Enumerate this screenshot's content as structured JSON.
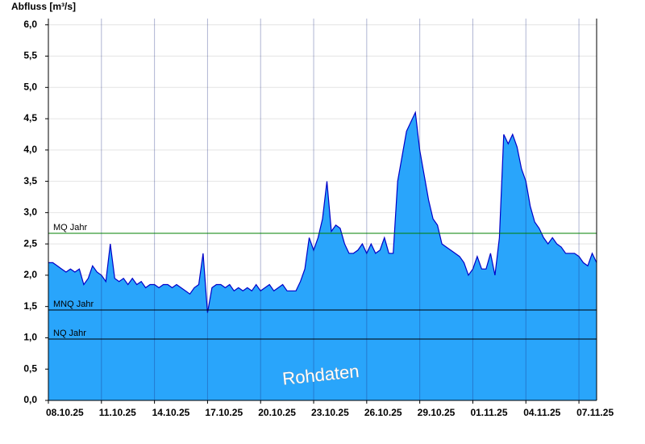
{
  "chart_data": {
    "type": "area",
    "title": "Abfluss [m³/s]",
    "annotation": "Rohdaten",
    "x": [
      "2025-10-08T00:00",
      "2025-10-08T06:00",
      "2025-10-08T12:00",
      "2025-10-08T18:00",
      "2025-10-09T00:00",
      "2025-10-09T06:00",
      "2025-10-09T12:00",
      "2025-10-09T18:00",
      "2025-10-10T00:00",
      "2025-10-10T06:00",
      "2025-10-10T12:00",
      "2025-10-10T18:00",
      "2025-10-11T00:00",
      "2025-10-11T06:00",
      "2025-10-11T12:00",
      "2025-10-11T18:00",
      "2025-10-12T00:00",
      "2025-10-12T06:00",
      "2025-10-12T12:00",
      "2025-10-12T18:00",
      "2025-10-13T00:00",
      "2025-10-13T06:00",
      "2025-10-13T12:00",
      "2025-10-13T18:00",
      "2025-10-14T00:00",
      "2025-10-14T06:00",
      "2025-10-14T12:00",
      "2025-10-14T18:00",
      "2025-10-15T00:00",
      "2025-10-15T06:00",
      "2025-10-15T12:00",
      "2025-10-15T18:00",
      "2025-10-16T00:00",
      "2025-10-16T06:00",
      "2025-10-16T12:00",
      "2025-10-16T18:00",
      "2025-10-17T00:00",
      "2025-10-17T06:00",
      "2025-10-17T12:00",
      "2025-10-17T18:00",
      "2025-10-18T00:00",
      "2025-10-18T06:00",
      "2025-10-18T12:00",
      "2025-10-18T18:00",
      "2025-10-19T00:00",
      "2025-10-19T06:00",
      "2025-10-19T12:00",
      "2025-10-19T18:00",
      "2025-10-20T00:00",
      "2025-10-20T06:00",
      "2025-10-20T12:00",
      "2025-10-20T18:00",
      "2025-10-21T00:00",
      "2025-10-21T06:00",
      "2025-10-21T12:00",
      "2025-10-21T18:00",
      "2025-10-22T00:00",
      "2025-10-22T06:00",
      "2025-10-22T12:00",
      "2025-10-22T18:00",
      "2025-10-23T00:00",
      "2025-10-23T06:00",
      "2025-10-23T12:00",
      "2025-10-23T18:00",
      "2025-10-24T00:00",
      "2025-10-24T06:00",
      "2025-10-24T12:00",
      "2025-10-24T18:00",
      "2025-10-25T00:00",
      "2025-10-25T06:00",
      "2025-10-25T12:00",
      "2025-10-25T18:00",
      "2025-10-26T00:00",
      "2025-10-26T06:00",
      "2025-10-26T12:00",
      "2025-10-26T18:00",
      "2025-10-27T00:00",
      "2025-10-27T06:00",
      "2025-10-27T12:00",
      "2025-10-27T18:00",
      "2025-10-28T00:00",
      "2025-10-28T06:00",
      "2025-10-28T12:00",
      "2025-10-28T18:00",
      "2025-10-29T00:00",
      "2025-10-29T06:00",
      "2025-10-29T12:00",
      "2025-10-29T18:00",
      "2025-10-30T00:00",
      "2025-10-30T06:00",
      "2025-10-30T12:00",
      "2025-10-30T18:00",
      "2025-10-31T00:00",
      "2025-10-31T06:00",
      "2025-10-31T12:00",
      "2025-10-31T18:00",
      "2025-11-01T00:00",
      "2025-11-01T06:00",
      "2025-11-01T12:00",
      "2025-11-01T18:00",
      "2025-11-02T00:00",
      "2025-11-02T06:00",
      "2025-11-02T12:00",
      "2025-11-02T18:00",
      "2025-11-03T00:00",
      "2025-11-03T06:00",
      "2025-11-03T12:00",
      "2025-11-03T18:00",
      "2025-11-04T00:00",
      "2025-11-04T06:00",
      "2025-11-04T12:00",
      "2025-11-04T18:00",
      "2025-11-05T00:00",
      "2025-11-05T06:00",
      "2025-11-05T12:00",
      "2025-11-05T18:00",
      "2025-11-06T00:00",
      "2025-11-06T06:00",
      "2025-11-06T12:00",
      "2025-11-06T18:00",
      "2025-11-07T00:00",
      "2025-11-07T06:00",
      "2025-11-07T12:00",
      "2025-11-07T18:00",
      "2025-11-08T00:00"
    ],
    "series": [
      {
        "name": "Abfluss",
        "color": "#29a5fb",
        "line_color": "#0000c8",
        "values": [
          2.2,
          2.2,
          2.15,
          2.1,
          2.05,
          2.1,
          2.05,
          2.1,
          1.85,
          1.95,
          2.15,
          2.05,
          2.0,
          1.9,
          2.5,
          1.95,
          1.9,
          1.95,
          1.85,
          1.95,
          1.85,
          1.9,
          1.8,
          1.85,
          1.85,
          1.8,
          1.85,
          1.85,
          1.8,
          1.85,
          1.8,
          1.75,
          1.7,
          1.8,
          1.85,
          2.35,
          1.4,
          1.8,
          1.85,
          1.85,
          1.8,
          1.85,
          1.75,
          1.8,
          1.75,
          1.8,
          1.75,
          1.85,
          1.75,
          1.8,
          1.85,
          1.75,
          1.8,
          1.85,
          1.75,
          1.75,
          1.75,
          1.9,
          2.1,
          2.6,
          2.4,
          2.6,
          2.9,
          3.5,
          2.7,
          2.8,
          2.75,
          2.5,
          2.35,
          2.35,
          2.4,
          2.5,
          2.35,
          2.5,
          2.35,
          2.4,
          2.6,
          2.35,
          2.35,
          3.5,
          3.9,
          4.3,
          4.45,
          4.6,
          4.0,
          3.6,
          3.2,
          2.9,
          2.8,
          2.5,
          2.45,
          2.4,
          2.35,
          2.3,
          2.2,
          2.0,
          2.1,
          2.3,
          2.1,
          2.1,
          2.35,
          2.0,
          2.6,
          4.25,
          4.1,
          4.25,
          4.05,
          3.7,
          3.5,
          3.1,
          2.85,
          2.75,
          2.6,
          2.5,
          2.6,
          2.5,
          2.45,
          2.35,
          2.35,
          2.35,
          2.3,
          2.2,
          2.15,
          2.35,
          2.2
        ]
      }
    ],
    "reference_lines": [
      {
        "label": "MQ Jahr",
        "value": 2.67,
        "color": "#008000"
      },
      {
        "label": "MNQ Jahr",
        "value": 1.445,
        "color": "#000000"
      },
      {
        "label": "NQ Jahr",
        "value": 0.98,
        "color": "#000000"
      }
    ],
    "xlim": [
      "2025-10-08T00:00",
      "2025-11-08T00:00"
    ],
    "xticks": [
      {
        "value": "2025-10-08T00:00",
        "label": "08.10.25"
      },
      {
        "value": "2025-10-11T00:00",
        "label": "11.10.25"
      },
      {
        "value": "2025-10-14T00:00",
        "label": "14.10.25"
      },
      {
        "value": "2025-10-17T00:00",
        "label": "17.10.25"
      },
      {
        "value": "2025-10-20T00:00",
        "label": "20.10.25"
      },
      {
        "value": "2025-10-23T00:00",
        "label": "23.10.25"
      },
      {
        "value": "2025-10-26T00:00",
        "label": "26.10.25"
      },
      {
        "value": "2025-10-29T00:00",
        "label": "29.10.25"
      },
      {
        "value": "2025-11-01T00:00",
        "label": "01.11.25"
      },
      {
        "value": "2025-11-04T00:00",
        "label": "04.11.25"
      },
      {
        "value": "2025-11-07T00:00",
        "label": "07.11.25"
      }
    ],
    "ylim": [
      0,
      6.1
    ],
    "yticks": [
      {
        "value": 0,
        "label": "0,0"
      },
      {
        "value": 0.5,
        "label": "0,5"
      },
      {
        "value": 1,
        "label": "1,0"
      },
      {
        "value": 1.5,
        "label": "1,5"
      },
      {
        "value": 2,
        "label": "2,0"
      },
      {
        "value": 2.5,
        "label": "2,5"
      },
      {
        "value": 3,
        "label": "3,0"
      },
      {
        "value": 3.5,
        "label": "3,5"
      },
      {
        "value": 4,
        "label": "4,0"
      },
      {
        "value": 4.5,
        "label": "4,5"
      },
      {
        "value": 5,
        "label": "5,0"
      },
      {
        "value": 5.5,
        "label": "5,5"
      },
      {
        "value": 6,
        "label": "6,0"
      }
    ],
    "grid": true
  }
}
